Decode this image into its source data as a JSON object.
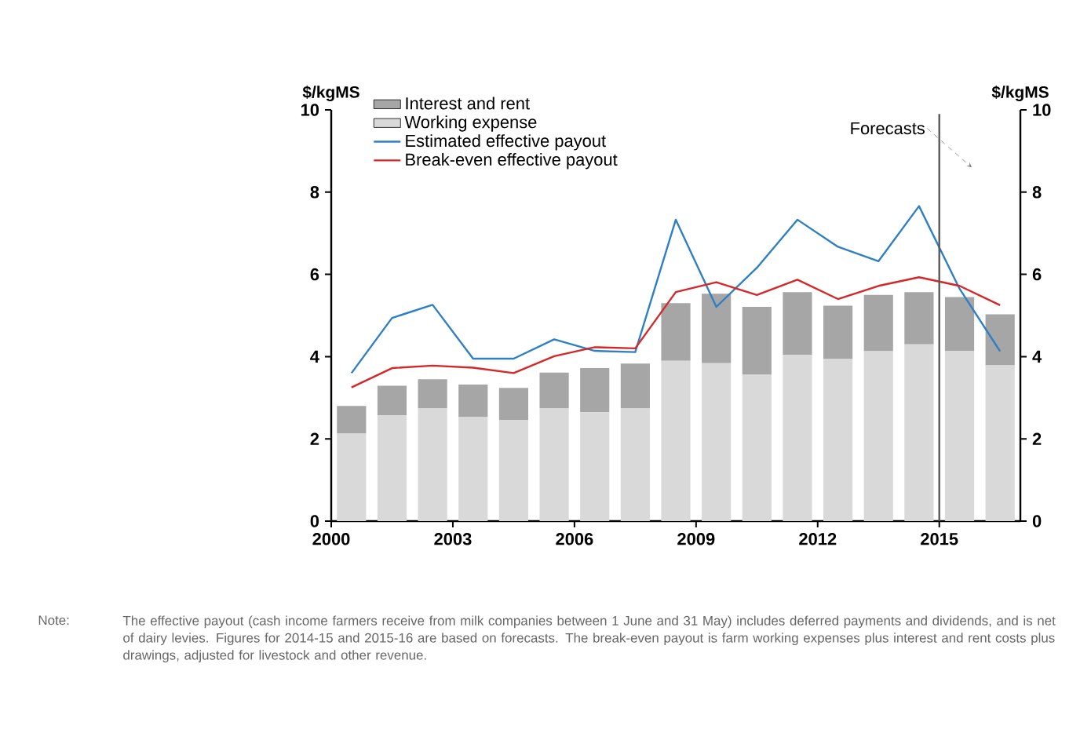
{
  "chart_data": {
    "type": "bar",
    "stacked": true,
    "x": [
      2000.5,
      2001.5,
      2002.5,
      2003.5,
      2004.5,
      2005.5,
      2006.5,
      2007.5,
      2008.5,
      2009.5,
      2010.5,
      2011.5,
      2012.5,
      2013.5,
      2014.5,
      2015.5,
      2016.5
    ],
    "series": [
      {
        "name": "Working expense",
        "color": "#d9d9d9",
        "values": [
          2.13,
          2.57,
          2.74,
          2.53,
          2.46,
          2.74,
          2.65,
          2.74,
          3.9,
          3.84,
          3.56,
          4.04,
          3.94,
          4.13,
          4.3,
          4.14,
          3.79
        ]
      },
      {
        "name": "Interest and rent",
        "color": "#a6a6a6",
        "values": [
          0.67,
          0.72,
          0.71,
          0.79,
          0.78,
          0.87,
          1.07,
          1.09,
          1.4,
          1.69,
          1.65,
          1.53,
          1.3,
          1.37,
          1.27,
          1.31,
          1.24
        ]
      },
      {
        "name": "Estimated effective payout",
        "type": "line",
        "color": "#2e7fc4",
        "values": [
          3.6,
          4.94,
          5.26,
          3.95,
          3.95,
          4.42,
          4.14,
          4.11,
          7.33,
          5.21,
          6.16,
          7.33,
          6.67,
          6.32,
          7.66,
          5.65,
          4.13
        ]
      },
      {
        "name": "Break-even effective payout",
        "type": "line",
        "color": "#d62728",
        "values": [
          3.25,
          3.72,
          3.78,
          3.73,
          3.6,
          4.01,
          4.23,
          4.2,
          5.57,
          5.81,
          5.5,
          5.87,
          5.4,
          5.72,
          5.93,
          5.72,
          5.25
        ]
      }
    ],
    "ylabel": "$/kgMS",
    "y2label": "$/kgMS",
    "xlim": [
      2000,
      2017
    ],
    "xticks": [
      2000,
      2003,
      2006,
      2009,
      2012,
      2015
    ],
    "ylim": [
      0,
      10
    ],
    "yticks": [
      0,
      2,
      4,
      6,
      8,
      10
    ],
    "y2lim": [
      0,
      10
    ],
    "y2ticks": [
      0,
      2,
      4,
      6,
      8,
      10
    ],
    "ref_lines": [
      {
        "axis": "x",
        "value": 2015,
        "label": "Forecasts",
        "color": "#595959"
      }
    ],
    "legend": "top left",
    "annotations": [
      "Note:",
      "The effective payout (cash income farmers receive from milk companies between 1 June and 31 May) includes deferred payments and dividends, and is net of dairy levies. Figures for 2014-15 and 2015-16 are based on forecasts. The break-even payout is farm working expenses plus interest and rent costs plus drawings, adjusted for livestock and other revenue."
    ]
  }
}
